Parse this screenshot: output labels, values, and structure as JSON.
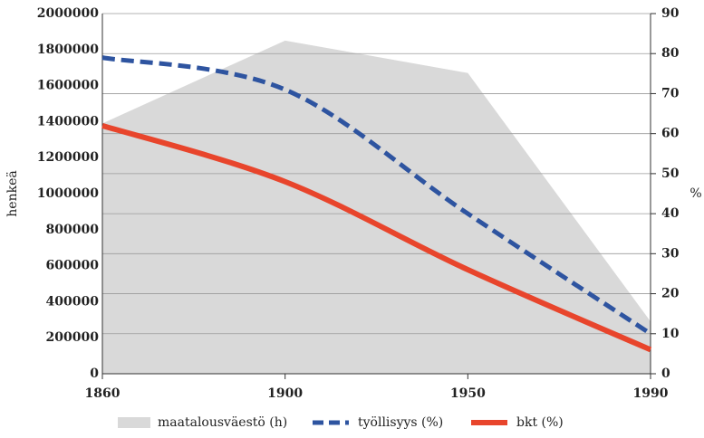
{
  "chart_data": {
    "type": "line",
    "categories": [
      "1860",
      "1900",
      "1950",
      "1990"
    ],
    "series": [
      {
        "name": "maatalousväestö (h)",
        "color": "#d9d9d9",
        "kind": "area",
        "axis": "y",
        "values": [
          1390000,
          1850000,
          1670000,
          290000
        ]
      },
      {
        "name": "työllisyys (%)",
        "color": "#2e54a0",
        "kind": "dashed",
        "axis": "y2",
        "values": [
          79,
          71,
          40,
          10
        ]
      },
      {
        "name": "bkt (%)",
        "color": "#e8452c",
        "kind": "solid",
        "axis": "y2",
        "values": [
          62,
          48,
          26,
          6
        ]
      }
    ],
    "ylabel": "henkeä",
    "y2label": "%",
    "ylim": [
      0,
      2000000
    ],
    "yticks": [
      0,
      200000,
      400000,
      600000,
      800000,
      1000000,
      1200000,
      1400000,
      1600000,
      1800000,
      2000000
    ],
    "y2lim": [
      0,
      90
    ],
    "y2ticks": [
      0,
      10,
      20,
      30,
      40,
      50,
      60,
      70,
      80,
      90
    ],
    "grid": true,
    "legend": "bottom"
  }
}
